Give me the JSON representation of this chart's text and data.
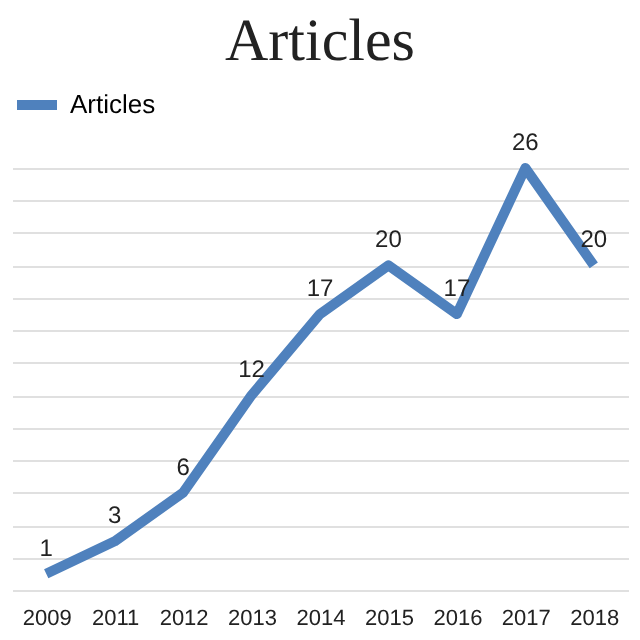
{
  "chart_data": {
    "type": "line",
    "title": "Articles",
    "categories": [
      "2009",
      "2011",
      "2012",
      "2013",
      "2014",
      "2015",
      "2016",
      "2017",
      "2018"
    ],
    "series": [
      {
        "name": "Articles",
        "color": "#4f81bd",
        "values": [
          1,
          3,
          6,
          12,
          17,
          20,
          17,
          26,
          20
        ]
      }
    ],
    "data_labels": true,
    "legend": "top",
    "grid": "y",
    "tick_labels": "x",
    "marker": "none"
  }
}
